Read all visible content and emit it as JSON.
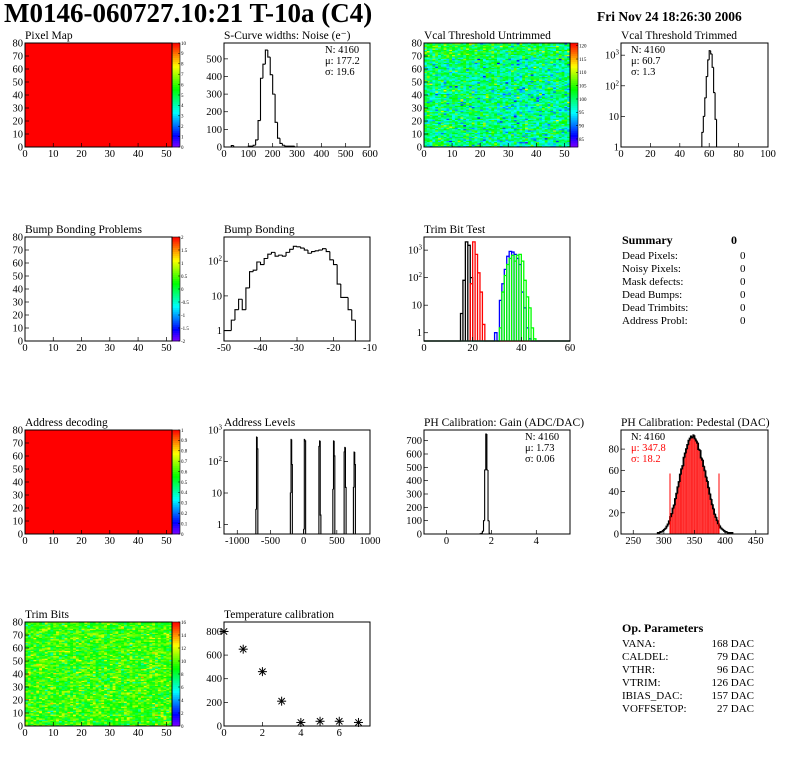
{
  "header": {
    "title": "M0146-060727.10:21 T-10a (C4)",
    "date": "Fri Nov 24 18:26:30 2006"
  },
  "summary": {
    "title": "Summary",
    "total": "0",
    "items": [
      {
        "label": "Dead Pixels:",
        "value": "0"
      },
      {
        "label": "Noisy Pixels:",
        "value": "0"
      },
      {
        "label": "Mask defects:",
        "value": "0"
      },
      {
        "label": "Dead Bumps:",
        "value": "0"
      },
      {
        "label": "Dead Trimbits:",
        "value": "0"
      },
      {
        "label": "Address Probl:",
        "value": "0"
      }
    ]
  },
  "op_parameters": {
    "title": "Op. Parameters",
    "items": [
      {
        "label": "VANA:",
        "value": "168 DAC"
      },
      {
        "label": "CALDEL:",
        "value": "79 DAC"
      },
      {
        "label": "VTHR:",
        "value": "96 DAC"
      },
      {
        "label": "VTRIM:",
        "value": "126 DAC"
      },
      {
        "label": "IBIAS_DAC:",
        "value": "157 DAC"
      },
      {
        "label": "VOFFSETOP:",
        "value": "27 DAC"
      }
    ]
  },
  "chart_data": [
    {
      "id": "pixel-map",
      "type": "heatmap",
      "title": "Pixel Map",
      "xlim": [
        0,
        52
      ],
      "ylim": [
        0,
        80
      ],
      "x_ticks": [
        0,
        10,
        20,
        30,
        40,
        50
      ],
      "y_ticks": [
        0,
        10,
        20,
        30,
        40,
        50,
        60,
        70,
        80
      ],
      "zlim": [
        0,
        10
      ],
      "z_ticks": [
        0,
        1,
        2,
        3,
        4,
        5,
        6,
        7,
        8,
        9,
        10
      ],
      "fill": "uniform",
      "uniform_value": 10
    },
    {
      "id": "s-curve-noise",
      "type": "bar",
      "title": "S-Curve widths: Noise (e⁻)",
      "xlim": [
        0,
        600
      ],
      "ylim": [
        0,
        590
      ],
      "x_ticks": [
        0,
        100,
        200,
        300,
        400,
        500,
        600
      ],
      "y_ticks": [
        0,
        100,
        200,
        300,
        400,
        500
      ],
      "bin_start": 20,
      "bin_width": 10,
      "values": [
        0,
        8,
        0,
        0,
        0,
        0,
        0,
        0,
        5,
        5,
        10,
        40,
        150,
        390,
        470,
        550,
        510,
        410,
        300,
        140,
        50,
        20,
        10,
        5,
        5,
        5,
        5,
        0
      ],
      "stats": [
        "N: 4160",
        "μ: 177.2",
        "σ: 19.6"
      ],
      "stats_pos": "top-right"
    },
    {
      "id": "vcal-threshold-untrimmed",
      "type": "heatmap",
      "title": "Vcal Threshold Untrimmed",
      "xlim": [
        0,
        52
      ],
      "ylim": [
        0,
        80
      ],
      "x_ticks": [
        0,
        10,
        20,
        30,
        40,
        50
      ],
      "y_ticks": [
        0,
        10,
        20,
        30,
        40,
        50,
        60,
        70,
        80
      ],
      "zlim": [
        82,
        121
      ],
      "z_ticks": [
        85,
        90,
        95,
        100,
        105,
        110,
        115,
        120
      ],
      "fill": "per-pixel"
    },
    {
      "id": "vcal-threshold-trimmed",
      "type": "bar",
      "title": "Vcal Threshold Trimmed",
      "log_y": true,
      "xlim": [
        0,
        100
      ],
      "ylim": [
        1,
        2500
      ],
      "x_ticks": [
        0,
        20,
        40,
        60,
        80,
        100
      ],
      "y_ticks": [
        1,
        10,
        100,
        1000
      ],
      "bin_start": 54,
      "bin_width": 1,
      "values": [
        0,
        3,
        10,
        40,
        200,
        700,
        1400,
        1100,
        400,
        60,
        8,
        0
      ],
      "stats": [
        "N: 4160",
        "μ: 60.7",
        "σ:  1.3"
      ],
      "stats_pos": "top-left"
    },
    {
      "id": "bump-bonding-problems",
      "type": "heatmap",
      "title": "Bump Bonding Problems",
      "xlim": [
        0,
        52
      ],
      "ylim": [
        0,
        80
      ],
      "x_ticks": [
        0,
        10,
        20,
        30,
        40,
        50
      ],
      "y_ticks": [
        0,
        10,
        20,
        30,
        40,
        50,
        60,
        70,
        80
      ],
      "zlim": [
        -2,
        2
      ],
      "z_ticks": [
        -2,
        -1.5,
        -1,
        -0.5,
        0,
        0.5,
        1,
        1.5,
        2
      ],
      "fill": "empty"
    },
    {
      "id": "bump-bonding",
      "type": "bar",
      "title": "Bump Bonding",
      "log_y": true,
      "xlim": [
        -50,
        -10
      ],
      "ylim": [
        0.5,
        500
      ],
      "x_ticks": [
        -50,
        -40,
        -30,
        -20,
        -10
      ],
      "y_ticks": [
        1,
        10,
        100
      ],
      "bin_start": -50,
      "bin_width": 1,
      "values": [
        1,
        1,
        2,
        4,
        8,
        4,
        17,
        50,
        55,
        95,
        80,
        120,
        160,
        180,
        140,
        150,
        140,
        180,
        220,
        270,
        260,
        240,
        210,
        170,
        190,
        200,
        210,
        230,
        190,
        110,
        80,
        22,
        9,
        9,
        4,
        2,
        0
      ]
    },
    {
      "id": "trim-bit-test",
      "type": "line",
      "title": "Trim Bit Test",
      "log_y": true,
      "xlim": [
        0,
        60
      ],
      "ylim": [
        0.5,
        3000
      ],
      "x_ticks": [
        0,
        20,
        40,
        60
      ],
      "y_ticks": [
        1,
        10,
        100,
        1000
      ],
      "bin_width": 1,
      "series": [
        {
          "color": "#000000",
          "bin_start": 15,
          "values": [
            5,
            80,
            2000,
            1500,
            100
          ]
        },
        {
          "color": "#ff0000",
          "bin_start": 19,
          "values": [
            60,
            2000,
            700,
            150,
            30,
            2
          ]
        },
        {
          "color": "#0000ff",
          "bin_start": 29,
          "values": [
            1,
            0,
            15,
            60,
            200,
            600,
            900,
            850,
            700,
            500,
            300,
            30,
            8,
            1.5,
            0.6
          ]
        },
        {
          "color": "#00ff00",
          "bin_start": 31,
          "values": [
            1.5,
            30,
            120,
            300,
            500,
            650,
            400,
            650,
            700,
            400,
            80,
            20,
            8,
            1.5,
            0.6
          ]
        }
      ]
    },
    {
      "id": "address-decoding",
      "type": "heatmap",
      "title": "Address decoding",
      "xlim": [
        0,
        52
      ],
      "ylim": [
        0,
        80
      ],
      "x_ticks": [
        0,
        10,
        20,
        30,
        40,
        50
      ],
      "y_ticks": [
        0,
        10,
        20,
        30,
        40,
        50,
        60,
        70,
        80
      ],
      "zlim": [
        0,
        1
      ],
      "z_ticks": [
        0,
        0.1,
        0.2,
        0.3,
        0.4,
        0.5,
        0.6,
        0.7,
        0.8,
        0.9,
        1
      ],
      "fill": "uniform",
      "uniform_value": 1
    },
    {
      "id": "address-levels",
      "type": "bar",
      "title": "Address Levels",
      "log_y": true,
      "xlim": [
        -1200,
        1000
      ],
      "ylim": [
        0.5,
        1000
      ],
      "x_ticks": [
        -1000,
        -500,
        0,
        500,
        1000
      ],
      "y_ticks": [
        1,
        10,
        100,
        1000
      ],
      "bin_width": 10,
      "bins": [
        [
          -720,
          3
        ],
        [
          -710,
          600
        ],
        [
          -700,
          250
        ],
        [
          -200,
          10
        ],
        [
          -190,
          500
        ],
        [
          -180,
          80
        ],
        [
          0,
          0.7
        ],
        [
          10,
          500
        ],
        [
          20,
          450
        ],
        [
          230,
          300
        ],
        [
          240,
          450
        ],
        [
          250,
          2
        ],
        [
          440,
          13
        ],
        [
          450,
          450
        ],
        [
          460,
          150
        ],
        [
          610,
          200
        ],
        [
          620,
          280
        ],
        [
          630,
          15
        ],
        [
          750,
          15
        ],
        [
          760,
          200
        ],
        [
          770,
          80
        ]
      ]
    },
    {
      "id": "ph-calibration-gain",
      "type": "bar",
      "title": "PH Calibration: Gain (ADC/DAC)",
      "xlim": [
        -1,
        5.5
      ],
      "ylim": [
        0,
        780
      ],
      "x_ticks": [
        0,
        2,
        4
      ],
      "y_ticks": [
        0,
        100,
        200,
        300,
        400,
        500,
        600,
        700
      ],
      "bin_start": 1.5,
      "bin_width": 0.05,
      "values": [
        2,
        5,
        20,
        100,
        480,
        750,
        480,
        100,
        5,
        0
      ],
      "stats": [
        "N: 4160",
        "μ: 1.73",
        "σ: 0.06"
      ],
      "stats_pos": "top-right"
    },
    {
      "id": "ph-calibration-pedestal",
      "type": "bar",
      "title": "PH Calibration: Pedestal (DAC)",
      "xlim": [
        230,
        470
      ],
      "ylim": [
        0,
        98
      ],
      "x_ticks": [
        250,
        300,
        350,
        400,
        450
      ],
      "y_ticks": [
        0,
        20,
        40,
        60,
        80
      ],
      "bin_start": 290,
      "bin_width": 2,
      "values": [
        1,
        1,
        2,
        2,
        3,
        4,
        5,
        7,
        9,
        12,
        16,
        19,
        24,
        27,
        33,
        38,
        44,
        49,
        56,
        61,
        64,
        72,
        76,
        80,
        84,
        88,
        90,
        92,
        91,
        93,
        90,
        88,
        86,
        80,
        79,
        72,
        70,
        64,
        60,
        54,
        50,
        44,
        38,
        33,
        28,
        24,
        19,
        16,
        13,
        10,
        8,
        6,
        5,
        4,
        3,
        2,
        2,
        1,
        1,
        1,
        1
      ],
      "fit_range": [
        310,
        390
      ],
      "fit_color": "#ff0000",
      "stats": [
        "N: 4160",
        "μ: 347.8",
        "σ: 18.2"
      ],
      "stats_colors": [
        "#000000",
        "#ff0000",
        "#ff0000"
      ],
      "stats_pos": "top-left"
    },
    {
      "id": "trim-bits",
      "type": "heatmap",
      "title": "Trim Bits",
      "xlim": [
        0,
        52
      ],
      "ylim": [
        0,
        80
      ],
      "x_ticks": [
        0,
        10,
        20,
        30,
        40,
        50
      ],
      "y_ticks": [
        0,
        10,
        20,
        30,
        40,
        50,
        60,
        70,
        80
      ],
      "zlim": [
        0,
        16
      ],
      "z_ticks": [
        0,
        2,
        4,
        6,
        8,
        10,
        12,
        14,
        16
      ],
      "fill": "per-pixel"
    },
    {
      "id": "temperature-calibration",
      "type": "scatter",
      "title": "Temperature calibration",
      "xlim": [
        0,
        7.6
      ],
      "ylim": [
        0,
        880
      ],
      "x_ticks": [
        0,
        2,
        4,
        6
      ],
      "y_ticks": [
        0,
        200,
        400,
        600,
        800
      ],
      "x": [
        0,
        1,
        2,
        3,
        4,
        5,
        6,
        7
      ],
      "y": [
        800,
        650,
        460,
        210,
        30,
        40,
        40,
        30
      ]
    }
  ]
}
